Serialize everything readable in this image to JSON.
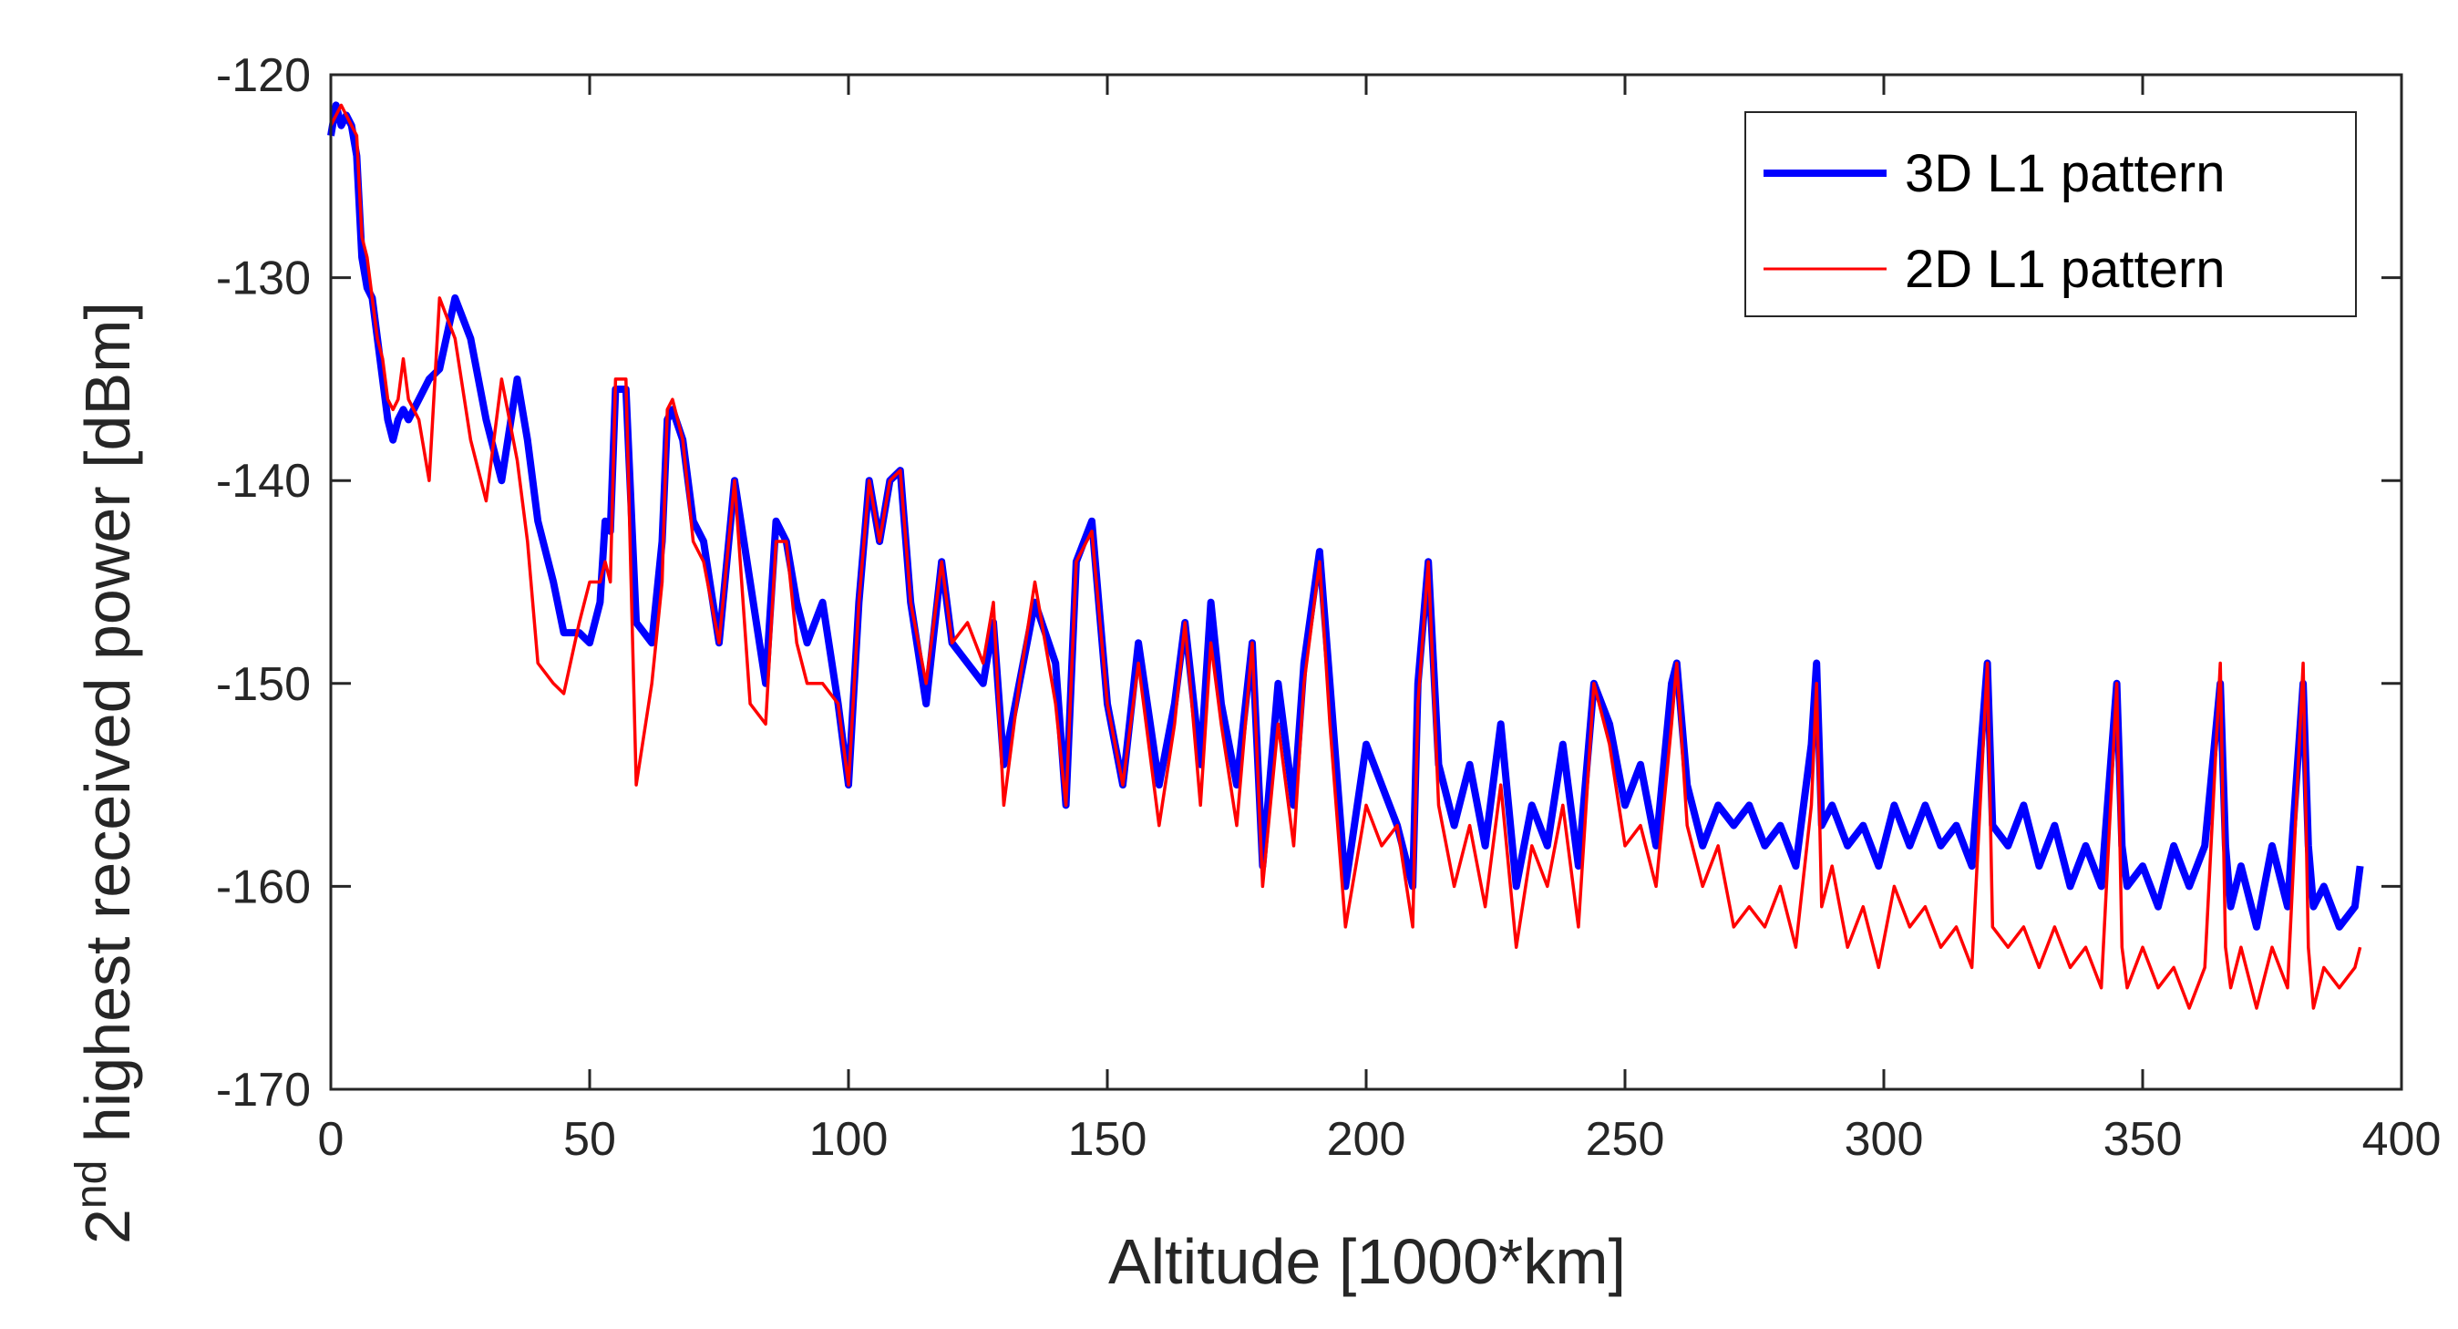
{
  "chart_data": {
    "type": "line",
    "title": "",
    "xlabel": "Altitude [1000*km]",
    "ylabel": {
      "prefix": "2",
      "superscript": "nd",
      "rest": " highest received power [dBm]"
    },
    "xlim": [
      0,
      400
    ],
    "ylim": [
      -170,
      -120
    ],
    "xticks": [
      0,
      50,
      100,
      150,
      200,
      250,
      300,
      350,
      400
    ],
    "yticks": [
      -120,
      -130,
      -140,
      -150,
      -160,
      -170
    ],
    "grid": false,
    "legend_position": "top-right",
    "series": [
      {
        "name": "3D L1 pattern",
        "color": "#0000ff",
        "x": [
          0,
          1,
          2,
          3,
          4,
          5,
          6,
          7,
          8,
          9,
          10,
          11,
          12,
          13,
          14,
          15,
          17,
          19,
          21,
          24,
          27,
          30,
          33,
          36,
          38,
          40,
          43,
          45,
          48,
          50,
          52,
          53,
          54,
          55,
          57,
          59,
          62,
          64,
          65,
          66,
          68,
          70,
          72,
          75,
          78,
          81,
          84,
          86,
          88,
          90,
          92,
          95,
          98,
          100,
          102,
          104,
          106,
          108,
          110,
          112,
          115,
          118,
          120,
          123,
          126,
          128,
          130,
          133,
          136,
          140,
          142,
          144,
          147,
          150,
          153,
          156,
          160,
          163,
          165,
          168,
          170,
          172,
          175,
          178,
          180,
          183,
          186,
          188,
          191,
          193,
          196,
          200,
          203,
          206,
          209,
          210,
          212,
          214,
          217,
          220,
          223,
          226,
          229,
          232,
          235,
          238,
          241,
          244,
          247,
          250,
          253,
          256,
          259,
          260,
          262,
          265,
          268,
          271,
          274,
          277,
          280,
          283,
          286,
          287,
          288,
          290,
          293,
          296,
          299,
          302,
          305,
          308,
          311,
          314,
          317,
          320,
          321,
          324,
          327,
          330,
          333,
          336,
          339,
          342,
          345,
          346,
          347,
          350,
          353,
          356,
          359,
          362,
          365,
          366,
          367,
          369,
          372,
          375,
          378,
          381,
          382,
          383,
          385,
          388,
          391,
          392
        ],
        "y": [
          -123,
          -121.5,
          -122.5,
          -122,
          -122.5,
          -124,
          -129,
          -130.5,
          -131,
          -133,
          -135,
          -137,
          -138,
          -137,
          -136.5,
          -137,
          -136,
          -135,
          -134.5,
          -131,
          -133,
          -137,
          -140,
          -135,
          -138,
          -142,
          -145,
          -147.5,
          -147.5,
          -148,
          -146,
          -142,
          -142.5,
          -135.5,
          -135.5,
          -147,
          -148,
          -143,
          -137,
          -136.5,
          -138,
          -142,
          -143,
          -148,
          -140,
          -145,
          -150,
          -142,
          -143,
          -146,
          -148,
          -146,
          -151,
          -155,
          -146,
          -140,
          -143,
          -140,
          -139.5,
          -146,
          -151,
          -144,
          -148,
          -149,
          -150,
          -147,
          -154,
          -150,
          -146,
          -149,
          -156,
          -144,
          -142,
          -151,
          -155,
          -148,
          -155,
          -151,
          -147,
          -154,
          -146,
          -151,
          -155,
          -148,
          -159,
          -150,
          -156,
          -149,
          -143.5,
          -150,
          -160,
          -153,
          -155,
          -157,
          -160,
          -150,
          -144,
          -154,
          -157,
          -154,
          -158,
          -152,
          -160,
          -156,
          -158,
          -153,
          -159,
          -150,
          -152,
          -156,
          -154,
          -158,
          -150,
          -149,
          -155,
          -158,
          -156,
          -157,
          -156,
          -158,
          -157,
          -159,
          -153,
          -149,
          -157,
          -156,
          -158,
          -157,
          -159,
          -156,
          -158,
          -156,
          -158,
          -157,
          -159,
          -149,
          -157,
          -158,
          -156,
          -159,
          -157,
          -160,
          -158,
          -160,
          -150,
          -158,
          -160,
          -159,
          -161,
          -158,
          -160,
          -158,
          -150,
          -158,
          -161,
          -159,
          -162,
          -158,
          -161,
          -150,
          -158,
          -161,
          -160,
          -162,
          -161,
          -159
        ]
      },
      {
        "name": "2D L1 pattern",
        "color": "#ff0000",
        "x": [
          0,
          1,
          2,
          3,
          4,
          5,
          6,
          7,
          8,
          9,
          10,
          11,
          12,
          13,
          14,
          15,
          17,
          19,
          21,
          24,
          27,
          30,
          33,
          36,
          38,
          40,
          43,
          45,
          48,
          50,
          52,
          53,
          54,
          55,
          57,
          59,
          62,
          64,
          65,
          66,
          68,
          70,
          72,
          75,
          78,
          81,
          84,
          86,
          88,
          90,
          92,
          95,
          98,
          100,
          102,
          104,
          106,
          108,
          110,
          112,
          115,
          118,
          120,
          123,
          126,
          128,
          130,
          133,
          136,
          140,
          142,
          144,
          147,
          150,
          153,
          156,
          160,
          163,
          165,
          168,
          170,
          172,
          175,
          178,
          180,
          183,
          186,
          188,
          191,
          193,
          196,
          200,
          203,
          206,
          209,
          210,
          212,
          214,
          217,
          220,
          223,
          226,
          229,
          232,
          235,
          238,
          241,
          244,
          247,
          250,
          253,
          256,
          259,
          260,
          262,
          265,
          268,
          271,
          274,
          277,
          280,
          283,
          286,
          287,
          288,
          290,
          293,
          296,
          299,
          302,
          305,
          308,
          311,
          314,
          317,
          320,
          321,
          324,
          327,
          330,
          333,
          336,
          339,
          342,
          345,
          346,
          347,
          350,
          353,
          356,
          359,
          362,
          365,
          366,
          367,
          369,
          372,
          375,
          378,
          381,
          382,
          383,
          385,
          388,
          391,
          392
        ],
        "y": [
          -122.5,
          -122,
          -121.5,
          -122,
          -122.5,
          -123,
          -128,
          -129,
          -131,
          -133,
          -134,
          -136,
          -136.5,
          -136,
          -134,
          -136,
          -137,
          -140,
          -131,
          -133,
          -138,
          -141,
          -135,
          -139,
          -143,
          -149,
          -150,
          -150.5,
          -147,
          -145,
          -145,
          -144,
          -145,
          -135,
          -135,
          -155,
          -150,
          -145,
          -136.5,
          -136,
          -138,
          -143,
          -144,
          -148,
          -140,
          -151,
          -152,
          -143,
          -143,
          -148,
          -150,
          -150,
          -151,
          -155,
          -146,
          -140,
          -143,
          -140,
          -139.5,
          -146,
          -150,
          -144,
          -148,
          -147,
          -149,
          -146,
          -156,
          -150,
          -145,
          -151,
          -156,
          -144,
          -142.5,
          -151,
          -155,
          -149,
          -157,
          -152,
          -147,
          -156,
          -148,
          -152,
          -157,
          -148,
          -160,
          -152,
          -158,
          -150,
          -144,
          -152,
          -162,
          -156,
          -158,
          -157,
          -162,
          -151,
          -144,
          -156,
          -160,
          -157,
          -161,
          -155,
          -163,
          -158,
          -160,
          -156,
          -162,
          -150,
          -153,
          -158,
          -157,
          -160,
          -152,
          -149,
          -157,
          -160,
          -158,
          -162,
          -161,
          -162,
          -160,
          -163,
          -156,
          -150,
          -161,
          -159,
          -163,
          -161,
          -164,
          -160,
          -162,
          -161,
          -163,
          -162,
          -164,
          -149,
          -162,
          -163,
          -162,
          -164,
          -162,
          -164,
          -163,
          -165,
          -150,
          -163,
          -165,
          -163,
          -165,
          -164,
          -166,
          -164,
          -149,
          -163,
          -165,
          -163,
          -166,
          -163,
          -165,
          -149,
          -163,
          -166,
          -164,
          -165,
          -164,
          -163
        ]
      }
    ]
  }
}
